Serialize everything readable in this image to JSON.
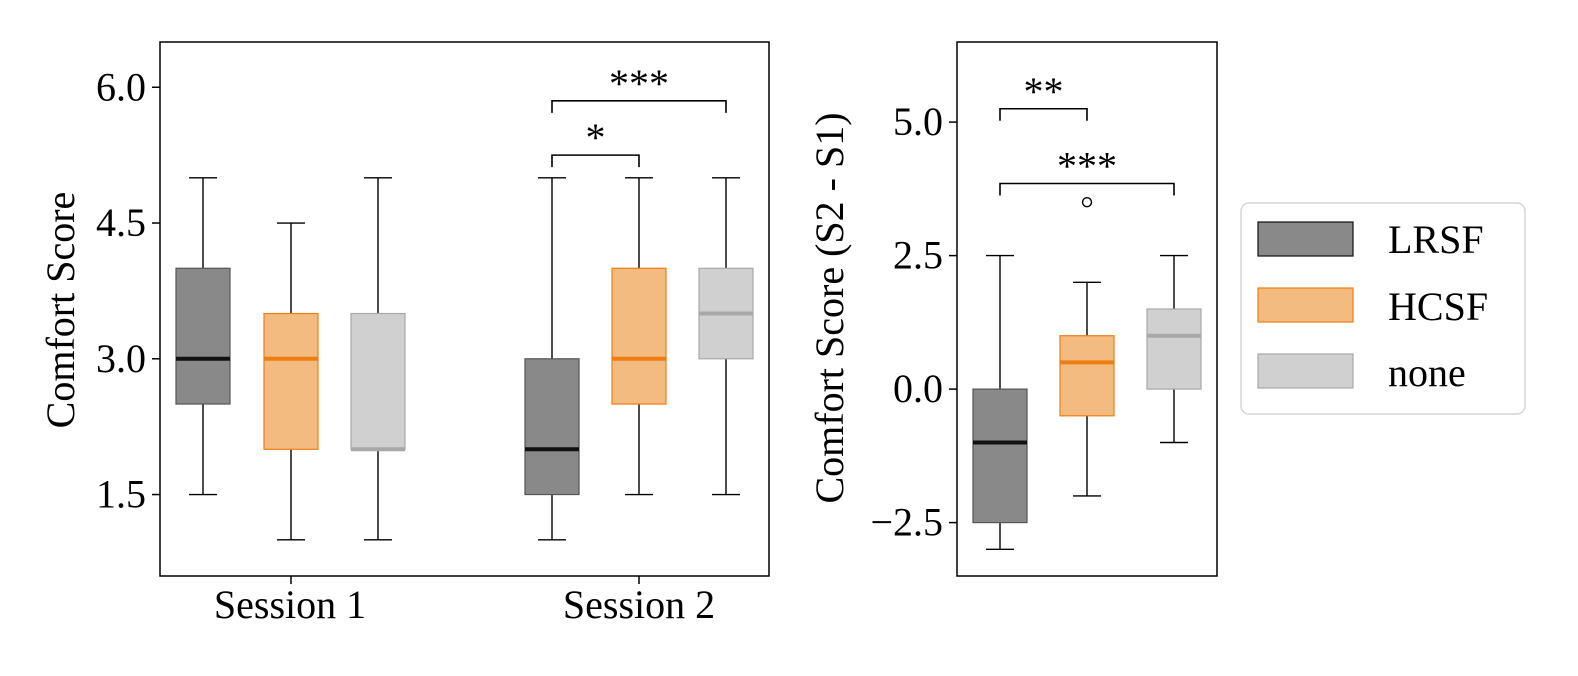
{
  "colors": {
    "LRSF": {
      "box": "#898989",
      "median": "#111111"
    },
    "HCSF": {
      "box": "#f3bb80",
      "median": "#ee7d12"
    },
    "none": {
      "box": "#d0d0d0",
      "median": "#a8a8a8"
    },
    "edge": "#000000"
  },
  "legend": [
    {
      "key": "LRSF",
      "label": "LRSF"
    },
    {
      "key": "HCSF",
      "label": "HCSF"
    },
    {
      "key": "none",
      "label": "none"
    }
  ],
  "chart_data": [
    {
      "type": "box",
      "ylabel": "Comfort Score",
      "ylim": [
        0.6,
        6.5
      ],
      "yticks": [
        1.5,
        3.0,
        4.5,
        6.0
      ],
      "ytick_labels": [
        "1.5",
        "3.0",
        "4.5",
        "6.0"
      ],
      "categories": [
        "Session 1",
        "Session 2"
      ],
      "boxes": [
        {
          "group": "Session 1",
          "series": "LRSF",
          "whislo": 1.5,
          "q1": 2.5,
          "med": 3.0,
          "q3": 4.0,
          "whishi": 5.0,
          "fliers": []
        },
        {
          "group": "Session 1",
          "series": "HCSF",
          "whislo": 1.0,
          "q1": 2.0,
          "med": 3.0,
          "q3": 3.5,
          "whishi": 4.5,
          "fliers": []
        },
        {
          "group": "Session 1",
          "series": "none",
          "whislo": 1.0,
          "q1": 2.0,
          "med": 2.0,
          "q3": 3.5,
          "whishi": 5.0,
          "fliers": []
        },
        {
          "group": "Session 2",
          "series": "LRSF",
          "whislo": 1.0,
          "q1": 1.5,
          "med": 2.0,
          "q3": 3.0,
          "whishi": 5.0,
          "fliers": []
        },
        {
          "group": "Session 2",
          "series": "HCSF",
          "whislo": 1.5,
          "q1": 2.5,
          "med": 3.0,
          "q3": 4.0,
          "whishi": 5.0,
          "fliers": []
        },
        {
          "group": "Session 2",
          "series": "none",
          "whislo": 1.5,
          "q1": 3.0,
          "med": 3.5,
          "q3": 4.0,
          "whishi": 5.0,
          "fliers": []
        }
      ],
      "significance": [
        {
          "from": "Session 2 LRSF",
          "to": "Session 2 HCSF",
          "label": "*",
          "y": 5.25
        },
        {
          "from": "Session 2 LRSF",
          "to": "Session 2 none",
          "label": "***",
          "y": 5.85
        }
      ]
    },
    {
      "type": "box",
      "ylabel": "Comfort Score (S2 - S1)",
      "ylim": [
        -3.5,
        6.5
      ],
      "yticks": [
        -2.5,
        0.0,
        2.5,
        5.0
      ],
      "ytick_labels": [
        "−2.5",
        "0.0",
        "2.5",
        "5.0"
      ],
      "categories": [],
      "boxes": [
        {
          "series": "LRSF",
          "whislo": -3.0,
          "q1": -2.5,
          "med": -1.0,
          "q3": 0.0,
          "whishi": 2.5,
          "fliers": []
        },
        {
          "series": "HCSF",
          "whislo": -2.0,
          "q1": -0.5,
          "med": 0.5,
          "q3": 1.0,
          "whishi": 2.0,
          "fliers": [
            3.5
          ]
        },
        {
          "series": "none",
          "whislo": -1.0,
          "q1": 0.0,
          "med": 1.0,
          "q3": 1.5,
          "whishi": 2.5,
          "fliers": []
        }
      ],
      "significance": [
        {
          "from": "LRSF",
          "to": "HCSF",
          "label": "**",
          "y": 5.25
        },
        {
          "from": "LRSF",
          "to": "none",
          "label": "***",
          "y": 3.85
        }
      ]
    }
  ]
}
